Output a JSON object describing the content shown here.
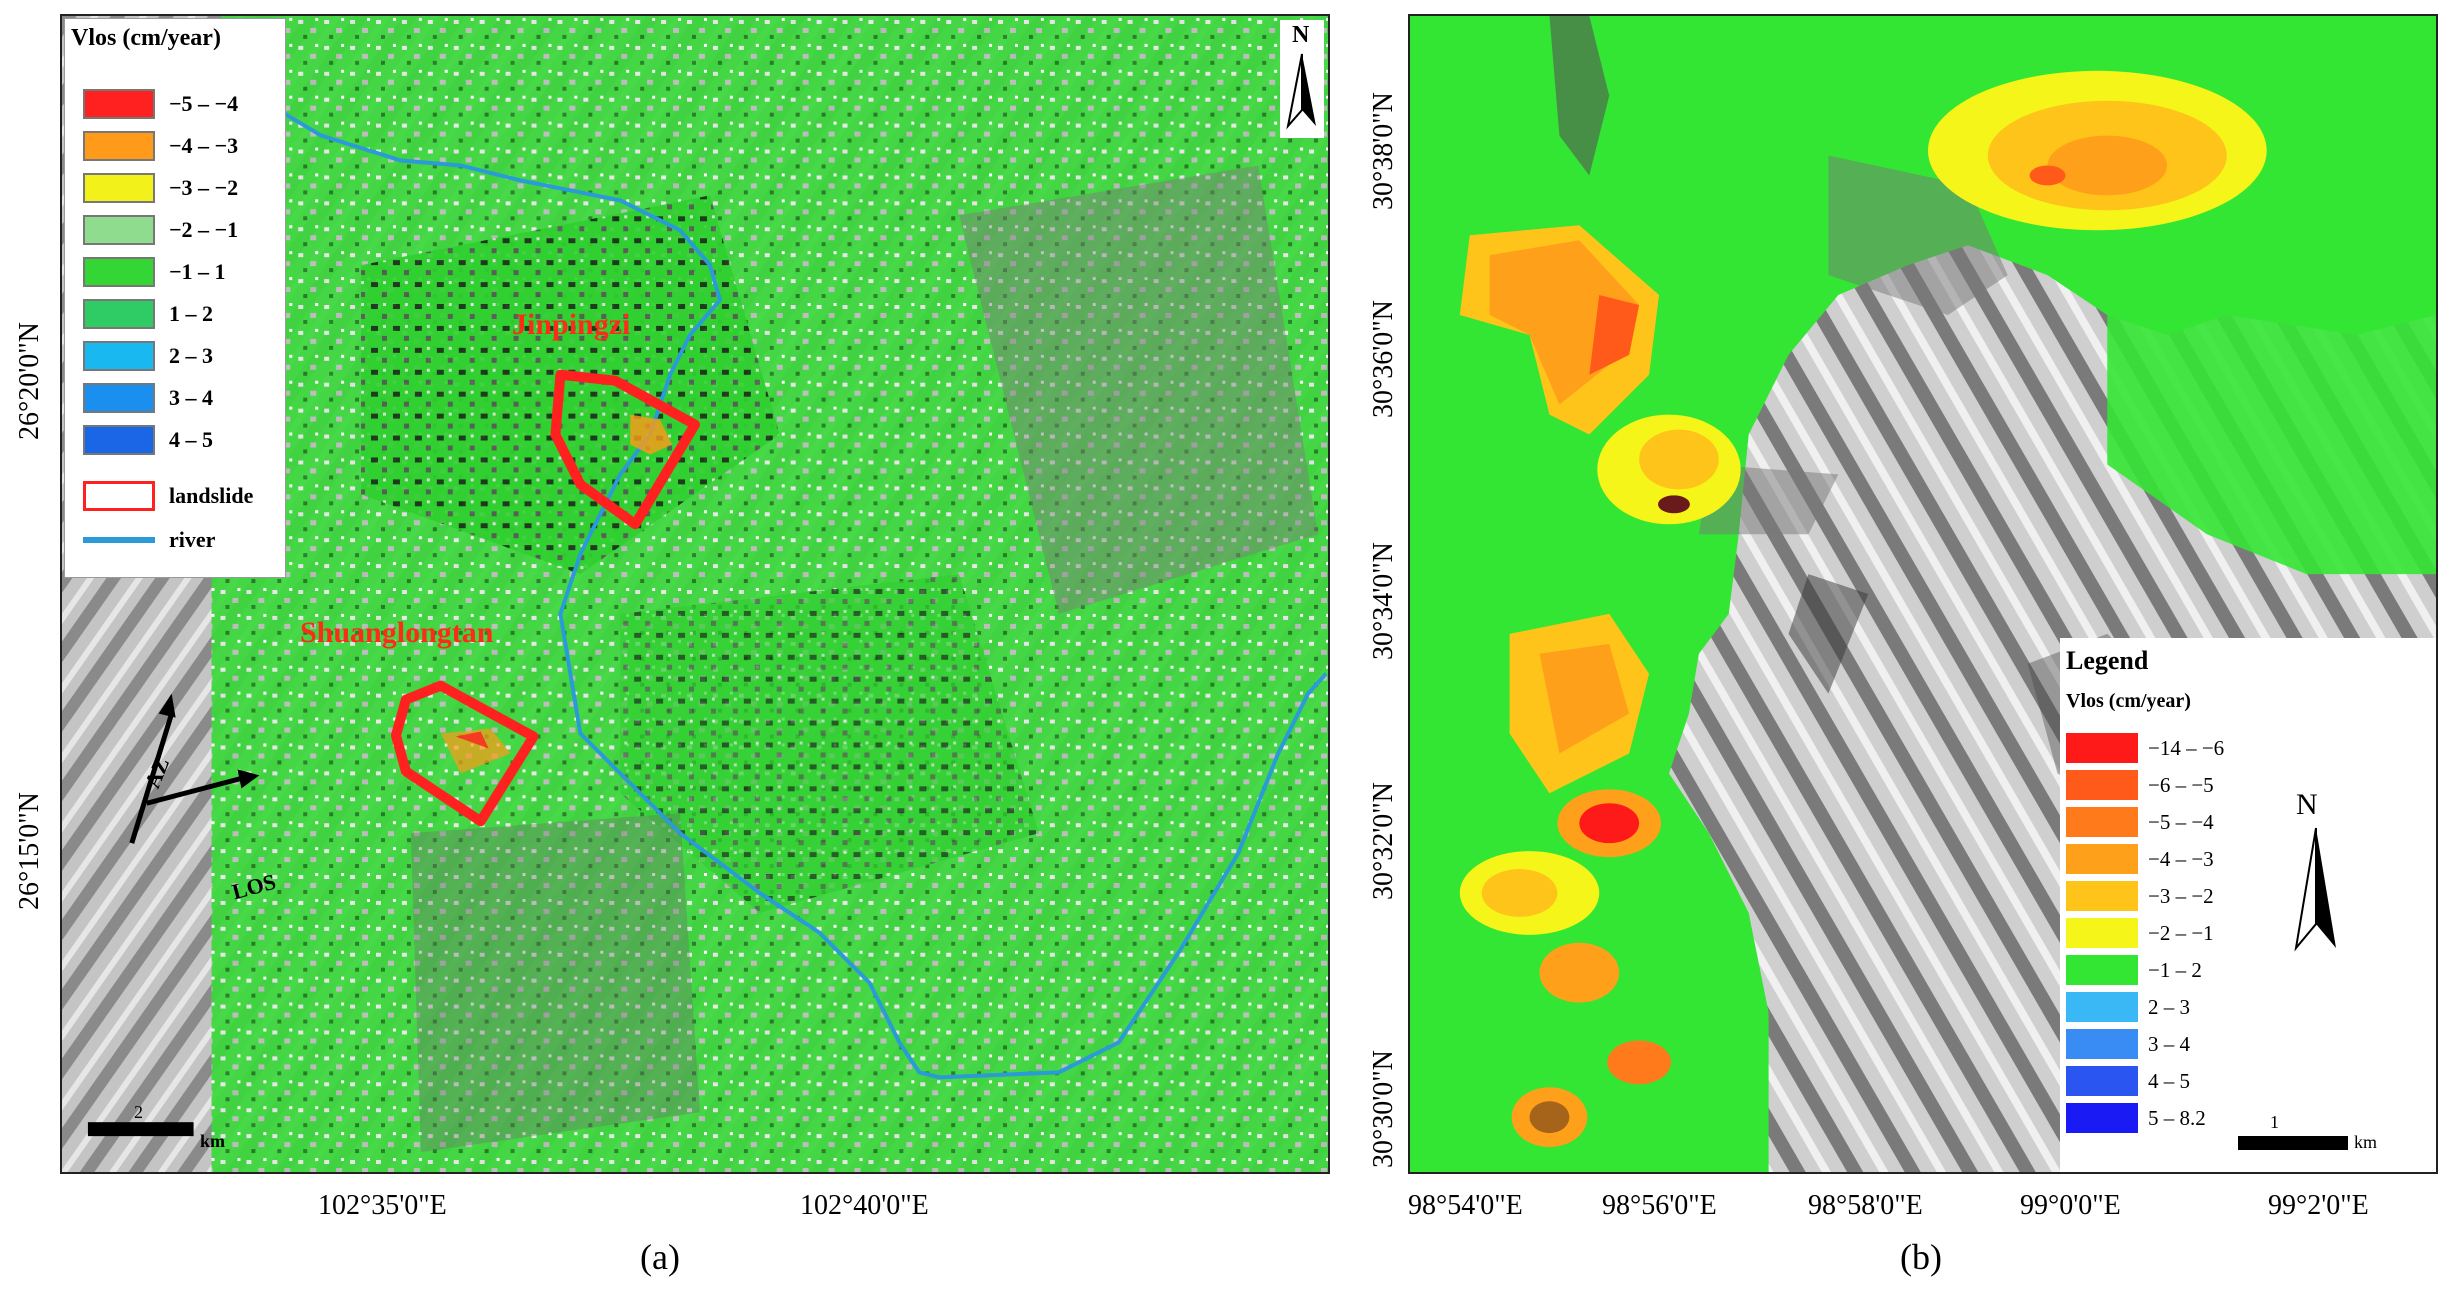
{
  "panel_a": {
    "label": "(a)",
    "legend": {
      "title": "Vlos (cm/year)",
      "classes": [
        {
          "label": "−5 – −4",
          "color": "#ff2020"
        },
        {
          "label": "−4 – −3",
          "color": "#ff9a1a"
        },
        {
          "label": "−3 – −2",
          "color": "#f2f21a"
        },
        {
          "label": "−2 – −1",
          "color": "#8fdc8f"
        },
        {
          "label": "−1 – 1",
          "color": "#33d633"
        },
        {
          "label": "1 – 2",
          "color": "#2fcc66"
        },
        {
          "label": "2 – 3",
          "color": "#1ab8f0"
        },
        {
          "label": "3 – 4",
          "color": "#1a8ff0"
        },
        {
          "label": "4 – 5",
          "color": "#1a66e6"
        }
      ],
      "landslide_label": "landslide",
      "river_label": "river",
      "landslide_color": "#ff2020",
      "river_color": "#2a9ad8"
    },
    "sites": {
      "jinpingzi": "Jinpingzi",
      "shuanglongtan": "Shuanglongtan"
    },
    "north": "N",
    "az": "AZ",
    "los": "LOS",
    "scale": {
      "value": "2",
      "unit": "km"
    },
    "x_ticks": [
      "102°35'0\"E",
      "102°40'0\"E"
    ],
    "y_ticks": [
      "26°20'0\"N",
      "26°15'0\"N"
    ]
  },
  "panel_b": {
    "label": "(b)",
    "legend": {
      "title": "Legend",
      "subtitle": "Vlos (cm/year)",
      "classes": [
        {
          "label": "−14 – −6",
          "color": "#ff1a1a"
        },
        {
          "label": "−6 – −5",
          "color": "#ff5a1a"
        },
        {
          "label": "−5 – −4",
          "color": "#ff7a1a"
        },
        {
          "label": "−4 – −3",
          "color": "#ffa01a"
        },
        {
          "label": "−3 – −2",
          "color": "#ffc41a"
        },
        {
          "label": "−2 – −1",
          "color": "#f5f51a"
        },
        {
          "label": "−1 – 2",
          "color": "#33e633"
        },
        {
          "label": "2 – 3",
          "color": "#3ab8f5"
        },
        {
          "label": "3 – 4",
          "color": "#3a8cf5"
        },
        {
          "label": "4 – 5",
          "color": "#2a55f0"
        },
        {
          "label": "5 – 8.2",
          "color": "#1a1af5"
        }
      ]
    },
    "north": "N",
    "scale": {
      "value": "1",
      "unit": "km"
    },
    "x_ticks": [
      "98°54'0\"E",
      "98°56'0\"E",
      "98°58'0\"E",
      "99°0'0\"E",
      "99°2'0\"E"
    ],
    "y_ticks": [
      "30°38'0\"N",
      "30°36'0\"N",
      "30°34'0\"N",
      "30°32'0\"N",
      "30°30'0\"N"
    ]
  }
}
